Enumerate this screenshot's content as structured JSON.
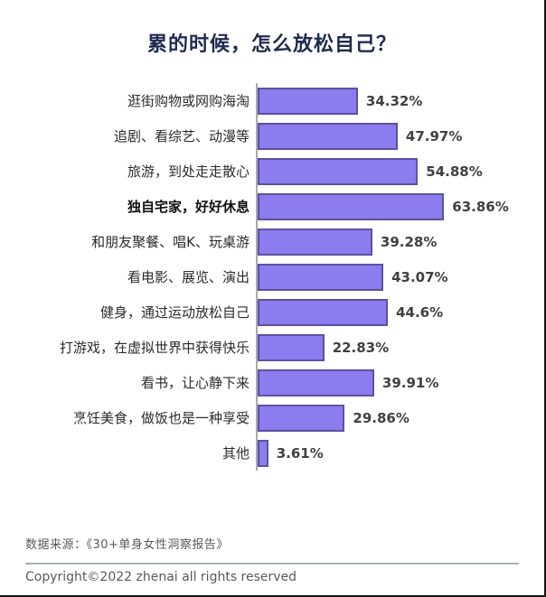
{
  "chart_data": {
    "type": "bar",
    "orientation": "horizontal",
    "title": "累的时候，怎么放松自己？",
    "categories": [
      "逛街购物或网购海淘",
      "追剧、看综艺、动漫等",
      "旅游，到处走走散心",
      "独自宅家，好好休息",
      "和朋友聚餐、唱K、玩桌游",
      "看电影、展览、演出",
      "健身，通过运动放松自己",
      "打游戏，在虚拟世界中获得快乐",
      "看书，让心静下来",
      "烹饪美食，做饭也是一种享受",
      "其他"
    ],
    "values": [
      34.32,
      47.97,
      54.88,
      63.86,
      39.28,
      43.07,
      44.6,
      22.83,
      39.91,
      29.86,
      3.61
    ],
    "value_labels": [
      "34.32%",
      "47.97%",
      "54.88%",
      "63.86%",
      "39.28%",
      "43.07%",
      "44.6%",
      "22.83%",
      "39.91%",
      "29.86%",
      "3.61%"
    ],
    "emphasized_category_index": 3,
    "xlabel": "",
    "ylabel": "",
    "xlim": [
      0,
      70
    ],
    "grid": false,
    "legend": false,
    "bar_color": "#8b7cef",
    "bar_border_color": "#5a51a5",
    "title_color": "#1e2b52"
  },
  "footer": {
    "source_note": "数据来源：《30+单身女性洞察报告》",
    "copyright": "Copyright©2022  zhenai  all rights reserved"
  }
}
